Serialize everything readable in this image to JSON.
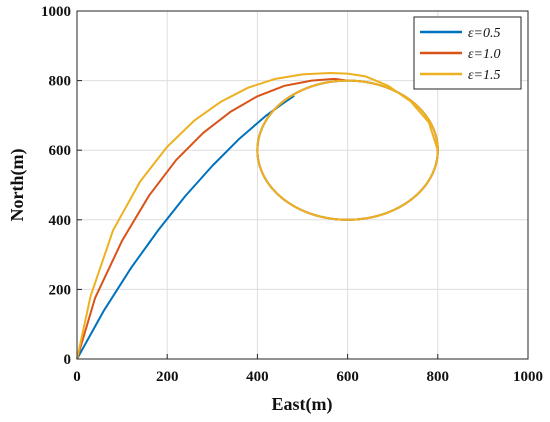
{
  "chart_data": {
    "type": "line",
    "title": "",
    "xlabel": "East(m)",
    "ylabel": "North(m)",
    "xlim": [
      0,
      1000
    ],
    "ylim": [
      0,
      1000
    ],
    "xticks": [
      "0",
      "200",
      "400",
      "600",
      "800",
      "1000"
    ],
    "yticks": [
      "0",
      "200",
      "400",
      "600",
      "800",
      "1000"
    ],
    "grid": true,
    "legend_position": "top-right",
    "circle": {
      "center": [
        600,
        600
      ],
      "radius": 200
    },
    "series": [
      {
        "name": "ε=0.5",
        "color": "#0072BD",
        "x": [
          0,
          60,
          120,
          180,
          240,
          300,
          360,
          420,
          455,
          480
        ],
        "y": [
          0,
          140,
          262,
          370,
          468,
          555,
          633,
          700,
          733,
          755
        ]
      },
      {
        "name": "ε=1.0",
        "color": "#D95319",
        "x": [
          0,
          40,
          100,
          160,
          220,
          280,
          340,
          400,
          460,
          520,
          570,
          600
        ],
        "y": [
          0,
          175,
          340,
          470,
          572,
          650,
          710,
          755,
          785,
          800,
          805,
          800
        ]
      },
      {
        "name": "ε=1.5",
        "color": "#EDB120",
        "x": [
          0,
          30,
          80,
          140,
          200,
          260,
          320,
          380,
          440,
          500,
          560,
          600,
          640,
          690,
          740,
          780,
          800
        ],
        "y": [
          0,
          180,
          370,
          510,
          610,
          685,
          740,
          780,
          805,
          818,
          822,
          820,
          812,
          785,
          740,
          680,
          600
        ]
      }
    ]
  }
}
